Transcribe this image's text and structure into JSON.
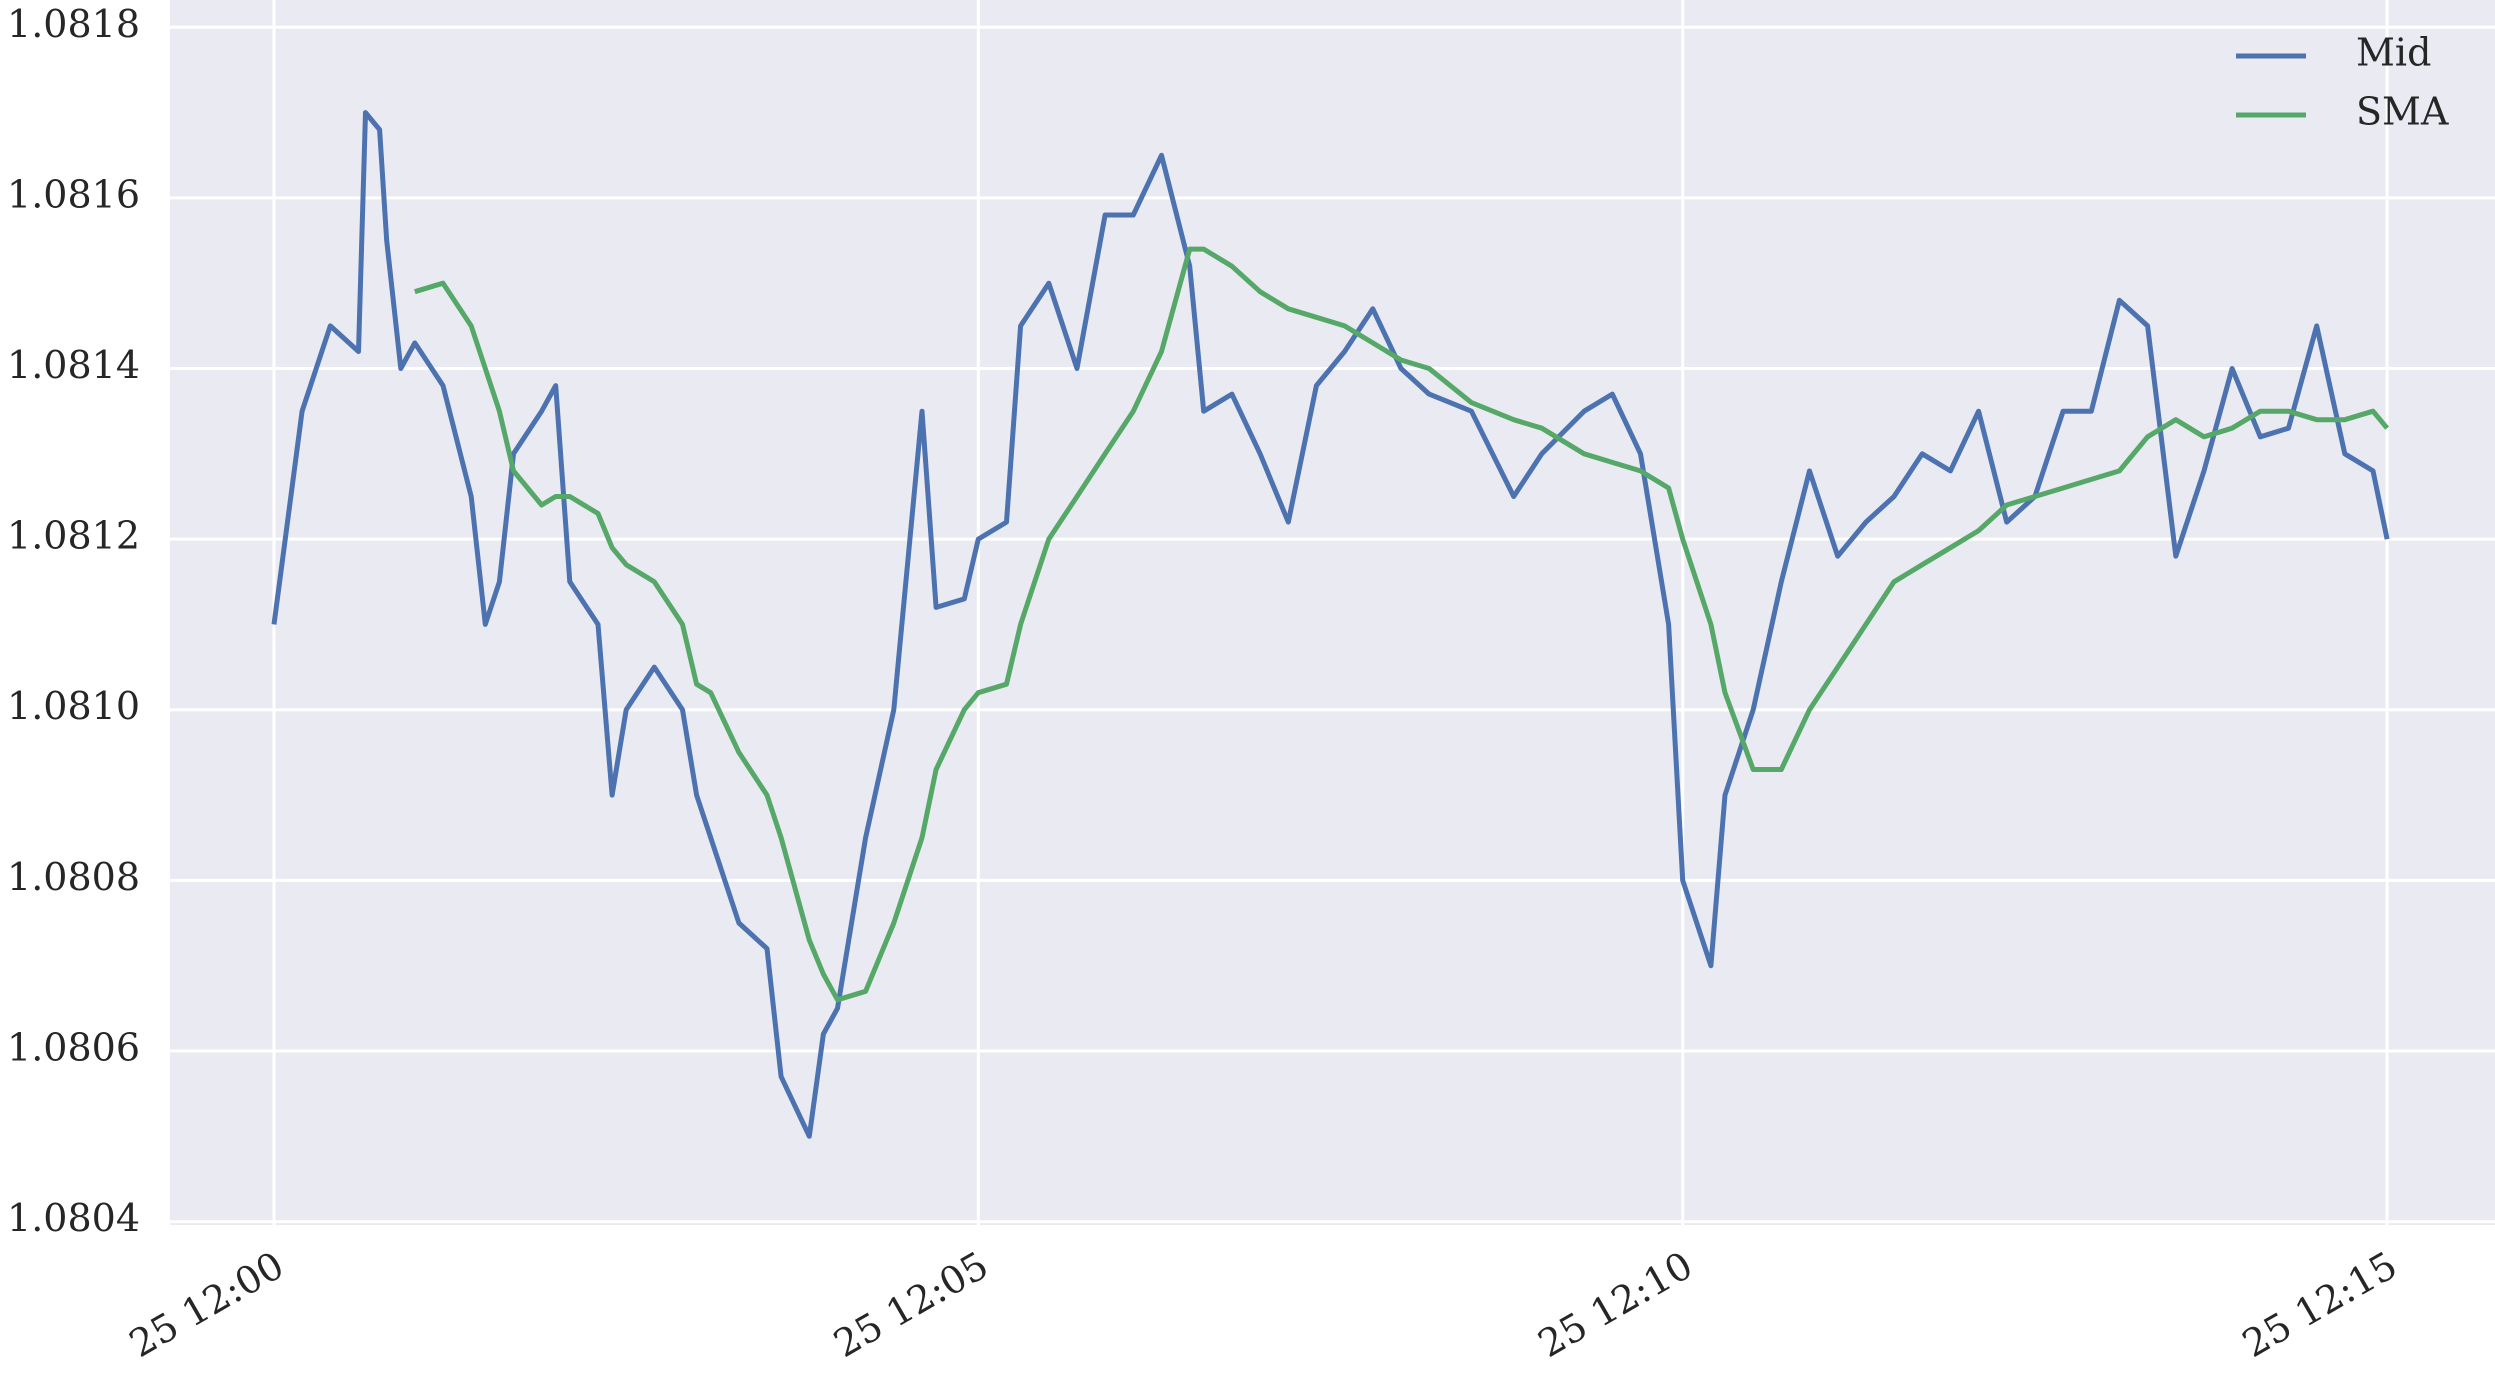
{
  "chart_data": {
    "type": "line",
    "x": [
      0,
      0.2,
      0.4,
      0.6,
      0.65,
      0.75,
      0.8,
      0.9,
      1.0,
      1.2,
      1.4,
      1.5,
      1.6,
      1.7,
      1.9,
      2.0,
      2.1,
      2.3,
      2.4,
      2.5,
      2.7,
      2.9,
      3.0,
      3.1,
      3.3,
      3.5,
      3.6,
      3.8,
      3.9,
      4.0,
      4.2,
      4.4,
      4.6,
      4.7,
      4.9,
      5.0,
      5.2,
      5.3,
      5.5,
      5.7,
      5.9,
      6.1,
      6.3,
      6.5,
      6.6,
      6.8,
      7.0,
      7.2,
      7.4,
      7.6,
      7.8,
      8.0,
      8.2,
      8.5,
      8.8,
      9.0,
      9.3,
      9.5,
      9.7,
      9.9,
      10.0,
      10.2,
      10.3,
      10.5,
      10.7,
      10.9,
      11.1,
      11.3,
      11.5,
      11.7,
      11.9,
      12.1,
      12.3,
      12.5,
      12.7,
      12.9,
      13.1,
      13.3,
      13.5,
      13.7,
      13.9,
      14.1,
      14.3,
      14.5,
      14.7,
      14.9,
      15.0
    ],
    "series": [
      {
        "name": "Mid",
        "color": "#4c72b0",
        "values": [
          1.0811,
          1.08135,
          1.08145,
          1.08142,
          1.0817,
          1.08168,
          1.08155,
          1.0814,
          1.08143,
          1.08138,
          1.08125,
          1.0811,
          1.08115,
          1.0813,
          1.08135,
          1.08138,
          1.08115,
          1.0811,
          1.0809,
          1.081,
          1.08105,
          1.081,
          1.0809,
          1.08085,
          1.08075,
          1.08072,
          1.08057,
          1.0805,
          1.08062,
          1.08065,
          1.08085,
          1.081,
          1.08135,
          1.08112,
          1.08113,
          1.0812,
          1.08122,
          1.08145,
          1.0815,
          1.0814,
          1.08158,
          1.08158,
          1.08165,
          1.08152,
          1.08135,
          1.08137,
          1.0813,
          1.08122,
          1.08138,
          1.08142,
          1.08147,
          1.0814,
          1.08137,
          1.08135,
          1.08125,
          1.0813,
          1.08135,
          1.08137,
          1.0813,
          1.0811,
          1.0808,
          1.0807,
          1.0809,
          1.081,
          1.08115,
          1.08128,
          1.08118,
          1.08122,
          1.08125,
          1.0813,
          1.08128,
          1.08135,
          1.08122,
          1.08125,
          1.08135,
          1.08135,
          1.08148,
          1.08145,
          1.08118,
          1.08128,
          1.0814,
          1.08132,
          1.08133,
          1.08145,
          1.0813,
          1.08128,
          1.0812
        ]
      },
      {
        "name": "SMA",
        "color": "#55a868",
        "values": [
          null,
          null,
          null,
          null,
          null,
          null,
          null,
          null,
          1.08149,
          1.0815,
          1.08145,
          1.0814,
          1.08135,
          1.08128,
          1.08124,
          1.08125,
          1.08125,
          1.08123,
          1.08119,
          1.08117,
          1.08115,
          1.0811,
          1.08103,
          1.08102,
          1.08095,
          1.0809,
          1.08085,
          1.08073,
          1.08069,
          1.08066,
          1.08067,
          1.08075,
          1.08085,
          1.08093,
          1.081,
          1.08102,
          1.08103,
          1.0811,
          1.0812,
          1.08125,
          1.0813,
          1.08135,
          1.08142,
          1.08154,
          1.08154,
          1.08152,
          1.08149,
          1.08147,
          1.08146,
          1.08145,
          1.08143,
          1.08141,
          1.0814,
          1.08136,
          1.08134,
          1.08133,
          1.0813,
          1.08129,
          1.08128,
          1.08126,
          1.0812,
          1.0811,
          1.08102,
          1.08093,
          1.08093,
          1.081,
          1.08105,
          1.0811,
          1.08115,
          1.08117,
          1.08119,
          1.08121,
          1.08124,
          1.08125,
          1.08126,
          1.08127,
          1.08128,
          1.08132,
          1.08134,
          1.08132,
          1.08133,
          1.08135,
          1.08135,
          1.08134,
          1.08134,
          1.08135,
          1.08133
        ]
      }
    ],
    "xlim": [
      -0.738,
      15.766
    ],
    "xticks": [
      {
        "value": 0,
        "label": "25 12:00"
      },
      {
        "value": 5,
        "label": "25 12:05"
      },
      {
        "value": 10,
        "label": "25 12:10"
      },
      {
        "value": 15,
        "label": "25 12:15"
      }
    ],
    "ylim": [
      1.080396,
      1.081832
    ],
    "yticks": [
      1.0804,
      1.0806,
      1.0808,
      {
        "value": 1.081,
        "label": "1.0810"
      },
      1.0812,
      1.0814,
      1.0816,
      1.0818
    ],
    "grid": true,
    "legend": "upper right"
  }
}
